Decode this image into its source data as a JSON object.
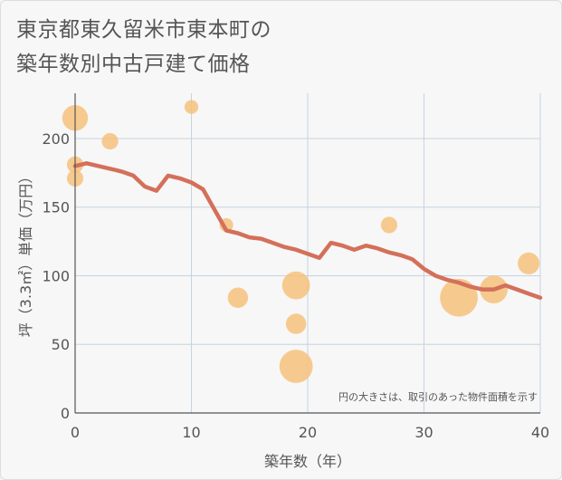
{
  "title_lines": [
    "東京都東久留米市東本町の",
    "築年数別中古戸建て価格"
  ],
  "chart_data": {
    "type": "scatter",
    "xlabel": "築年数（年）",
    "ylabel": "坪（3.3㎡）単価（万円）",
    "xlim": [
      0,
      40
    ],
    "ylim": [
      0,
      233
    ],
    "xticks": [
      0,
      10,
      20,
      30,
      40
    ],
    "yticks": [
      0,
      50,
      100,
      150,
      200
    ],
    "grid": true,
    "note": "円の大きさは、取引のあった物件面積を示す",
    "colors": {
      "line": "#d4705a",
      "bubble": "#f5c077",
      "grid": "#c5d3e0",
      "axis": "#555555"
    },
    "series": [
      {
        "type": "scatter",
        "points": [
          {
            "x": 0,
            "y": 215,
            "size": 4
          },
          {
            "x": 0,
            "y": 181,
            "size": 1
          },
          {
            "x": 0,
            "y": 171,
            "size": 1
          },
          {
            "x": 3,
            "y": 198,
            "size": 1
          },
          {
            "x": 10,
            "y": 223,
            "size": 0.5
          },
          {
            "x": 13,
            "y": 137,
            "size": 0.5
          },
          {
            "x": 14,
            "y": 84,
            "size": 2
          },
          {
            "x": 19,
            "y": 93,
            "size": 5
          },
          {
            "x": 19,
            "y": 65,
            "size": 2
          },
          {
            "x": 19,
            "y": 34,
            "size": 8
          },
          {
            "x": 27,
            "y": 137,
            "size": 1
          },
          {
            "x": 33,
            "y": 84,
            "size": 11
          },
          {
            "x": 36,
            "y": 90,
            "size": 5
          },
          {
            "x": 39,
            "y": 109,
            "size": 2.5
          }
        ]
      },
      {
        "type": "line",
        "x": [
          0,
          1,
          2,
          3,
          4,
          5,
          6,
          7,
          8,
          9,
          10,
          11,
          12,
          13,
          14,
          15,
          16,
          17,
          18,
          19,
          20,
          21,
          22,
          23,
          24,
          25,
          26,
          27,
          28,
          29,
          30,
          31,
          32,
          33,
          34,
          35,
          36,
          37,
          38,
          39,
          40
        ],
        "y": [
          180,
          182,
          180,
          178,
          176,
          173,
          165,
          162,
          173,
          171,
          168,
          163,
          148,
          133,
          131,
          128,
          127,
          124,
          121,
          119,
          116,
          113,
          124,
          122,
          119,
          122,
          120,
          117,
          115,
          112,
          105,
          100,
          97,
          95,
          92,
          90,
          90,
          93,
          90,
          87,
          84
        ]
      }
    ]
  }
}
